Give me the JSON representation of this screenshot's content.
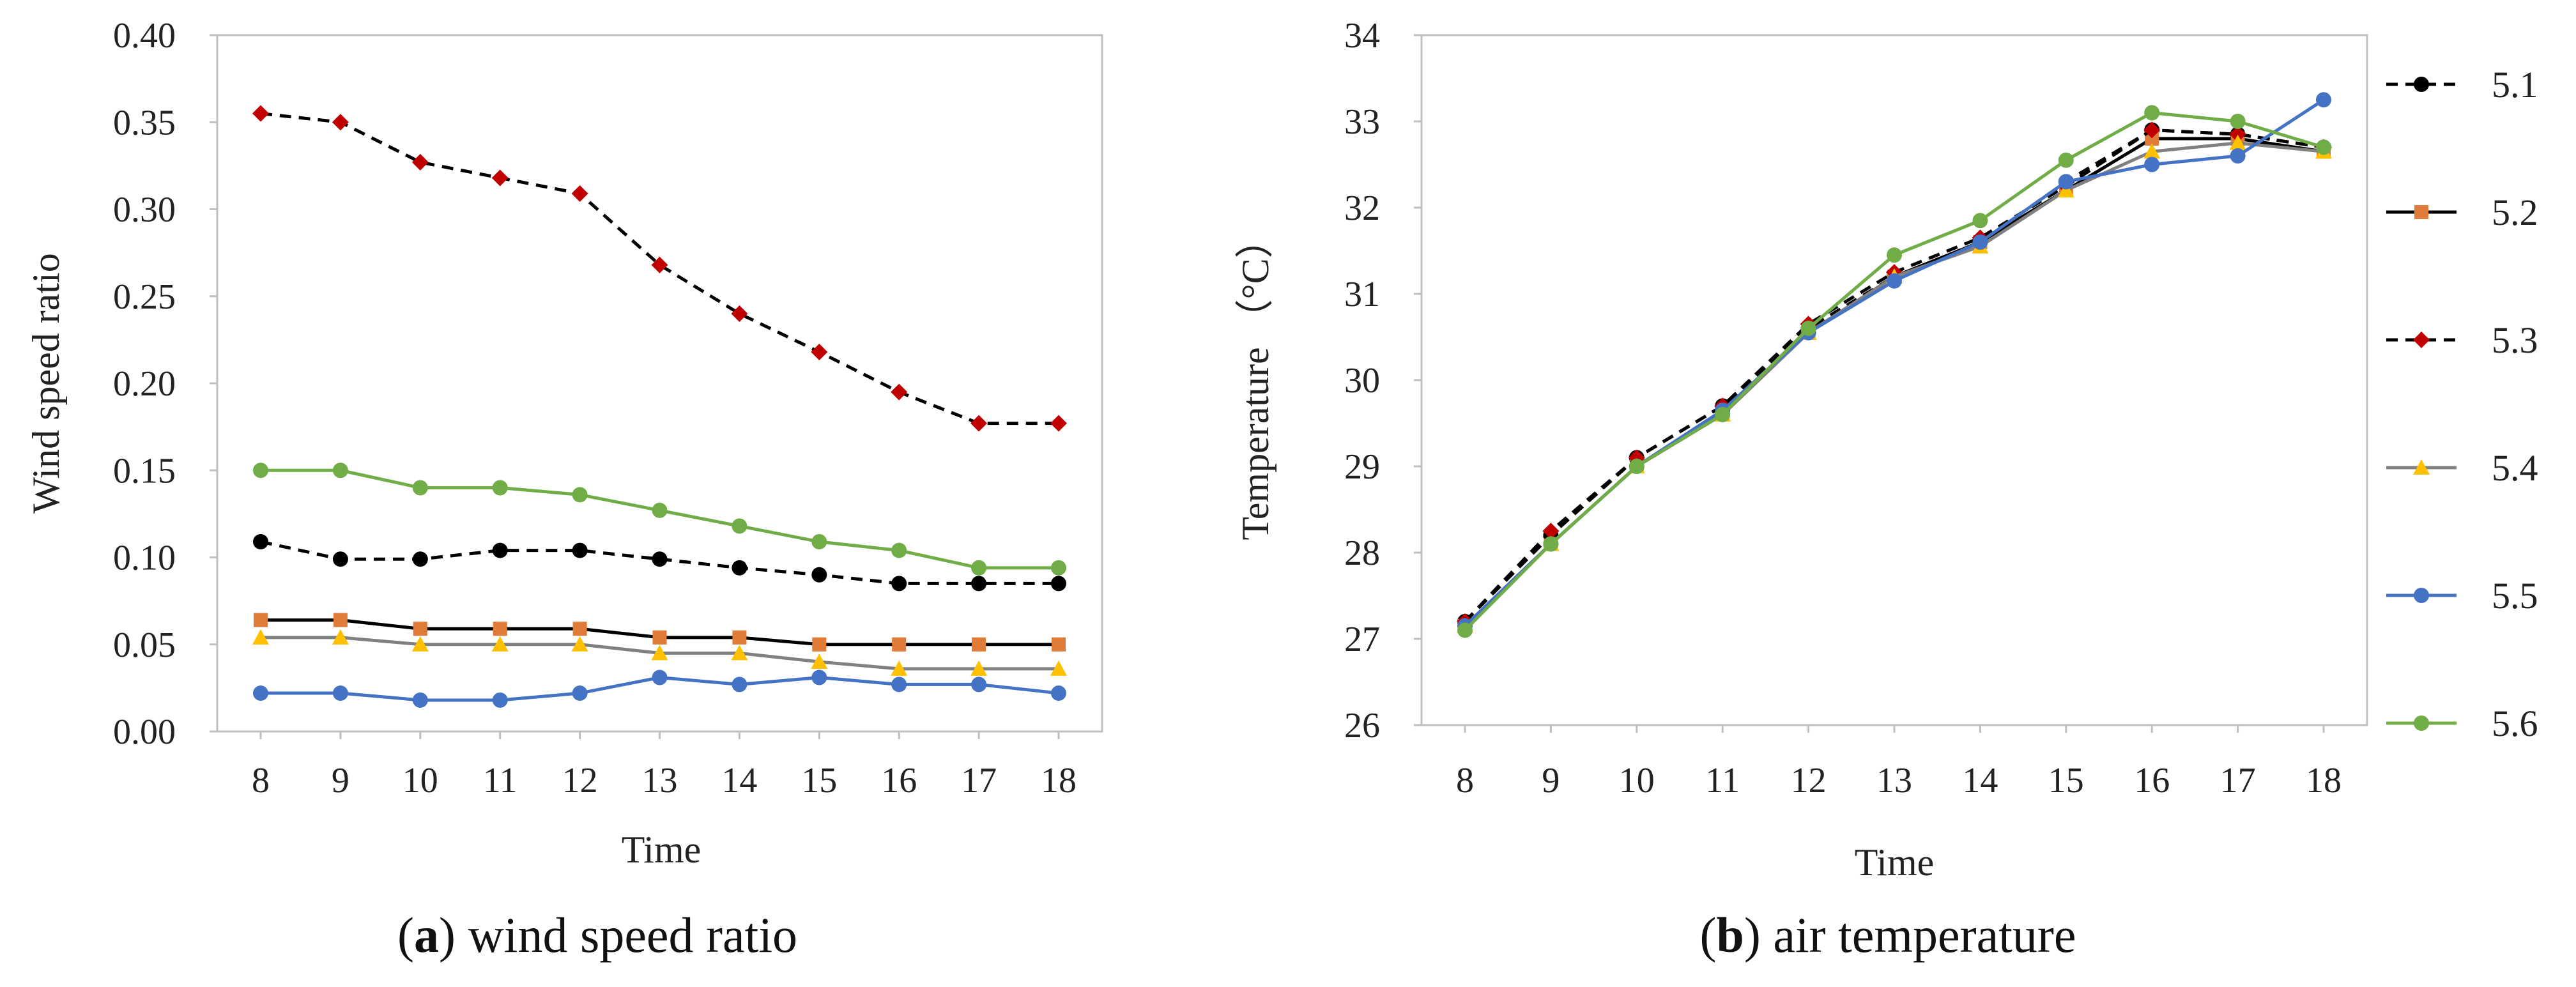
{
  "chart_data": [
    {
      "type": "line",
      "id": "a",
      "caption_letter": "a",
      "caption_text": ") wind speed ratio",
      "caption_open": "(",
      "title": "",
      "xlabel": "Time",
      "ylabel": "Wind speed ratio",
      "x": [
        8,
        9,
        10,
        11,
        12,
        13,
        14,
        15,
        16,
        17,
        18
      ],
      "x_tick_labels": [
        "8",
        "9",
        "10",
        "11",
        "12",
        "13",
        "14",
        "15",
        "16",
        "17",
        "18"
      ],
      "ylim": [
        0,
        0.4
      ],
      "y_ticks": [
        0,
        0.05,
        0.1,
        0.15,
        0.2,
        0.25,
        0.3,
        0.35,
        0.4
      ],
      "y_tick_labels": [
        "0.00",
        "0.05",
        "0.10",
        "0.15",
        "0.20",
        "0.25",
        "0.30",
        "0.35",
        "0.40"
      ],
      "grid": false,
      "series": [
        {
          "name": "5.1",
          "line_color": "#000000",
          "marker_color": "#000000",
          "marker": "circle",
          "dashed": true,
          "values": [
            0.109,
            0.099,
            0.099,
            0.104,
            0.104,
            0.099,
            0.094,
            0.09,
            0.085,
            0.085,
            0.085
          ]
        },
        {
          "name": "5.2",
          "line_color": "#000000",
          "marker_color": "#e07b39",
          "marker": "square",
          "dashed": false,
          "values": [
            0.064,
            0.064,
            0.059,
            0.059,
            0.059,
            0.054,
            0.054,
            0.05,
            0.05,
            0.05,
            0.05
          ]
        },
        {
          "name": "5.3",
          "line_color": "#000000",
          "marker_color": "#c00000",
          "marker": "diamond",
          "dashed": true,
          "values": [
            0.355,
            0.35,
            0.327,
            0.318,
            0.309,
            0.268,
            0.24,
            0.218,
            0.195,
            0.177,
            0.177
          ]
        },
        {
          "name": "5.4",
          "line_color": "#808080",
          "marker_color": "#ffc000",
          "marker": "triangle",
          "dashed": false,
          "values": [
            0.054,
            0.054,
            0.05,
            0.05,
            0.05,
            0.045,
            0.045,
            0.04,
            0.036,
            0.036,
            0.036
          ]
        },
        {
          "name": "5.5",
          "line_color": "#4472c4",
          "marker_color": "#4472c4",
          "marker": "circle",
          "dashed": false,
          "values": [
            0.022,
            0.022,
            0.018,
            0.018,
            0.022,
            0.031,
            0.027,
            0.031,
            0.027,
            0.027,
            0.022
          ]
        },
        {
          "name": "5.6",
          "line_color": "#70ad47",
          "marker_color": "#70ad47",
          "marker": "circle",
          "dashed": false,
          "values": [
            0.15,
            0.15,
            0.14,
            0.14,
            0.136,
            0.127,
            0.118,
            0.109,
            0.104,
            0.094,
            0.094
          ]
        }
      ]
    },
    {
      "type": "line",
      "id": "b",
      "caption_letter": "b",
      "caption_text": ") air temperature",
      "caption_open": "(",
      "title": "",
      "xlabel": "Time",
      "ylabel": "Temperature （°C）",
      "x": [
        8,
        9,
        10,
        11,
        12,
        13,
        14,
        15,
        16,
        17,
        18
      ],
      "x_tick_labels": [
        "8",
        "9",
        "10",
        "11",
        "12",
        "13",
        "14",
        "15",
        "16",
        "17",
        "18"
      ],
      "ylim": [
        26,
        34
      ],
      "y_ticks": [
        26,
        27,
        28,
        29,
        30,
        31,
        32,
        33,
        34
      ],
      "y_tick_labels": [
        "26",
        "27",
        "28",
        "29",
        "30",
        "31",
        "32",
        "33",
        "34"
      ],
      "grid": false,
      "legend": "right",
      "series": [
        {
          "name": "5.1",
          "line_color": "#000000",
          "marker_color": "#000000",
          "marker": "circle",
          "dashed": true,
          "values": [
            27.2,
            28.2,
            29.1,
            29.7,
            30.6,
            31.2,
            31.6,
            32.3,
            32.9,
            32.85,
            32.7
          ]
        },
        {
          "name": "5.2",
          "line_color": "#000000",
          "marker_color": "#e07b39",
          "marker": "square",
          "dashed": false,
          "values": [
            27.15,
            28.1,
            29.0,
            29.6,
            30.55,
            31.2,
            31.6,
            32.2,
            32.8,
            32.8,
            32.65
          ]
        },
        {
          "name": "5.3",
          "line_color": "#000000",
          "marker_color": "#c00000",
          "marker": "diamond",
          "dashed": true,
          "values": [
            27.2,
            28.25,
            29.1,
            29.7,
            30.65,
            31.25,
            31.65,
            32.25,
            32.9,
            32.85,
            32.7
          ]
        },
        {
          "name": "5.4",
          "line_color": "#808080",
          "marker_color": "#ffc000",
          "marker": "triangle",
          "dashed": false,
          "values": [
            27.15,
            28.1,
            29.0,
            29.6,
            30.55,
            31.2,
            31.55,
            32.2,
            32.65,
            32.75,
            32.65
          ]
        },
        {
          "name": "5.5",
          "line_color": "#4472c4",
          "marker_color": "#4472c4",
          "marker": "circle",
          "dashed": false,
          "values": [
            27.15,
            28.1,
            29.0,
            29.65,
            30.55,
            31.15,
            31.6,
            32.3,
            32.5,
            32.6,
            33.25
          ]
        },
        {
          "name": "5.6",
          "line_color": "#70ad47",
          "marker_color": "#70ad47",
          "marker": "circle",
          "dashed": false,
          "values": [
            27.1,
            28.1,
            29.0,
            29.6,
            30.6,
            31.45,
            31.85,
            32.55,
            33.1,
            33.0,
            32.7
          ]
        }
      ]
    }
  ]
}
